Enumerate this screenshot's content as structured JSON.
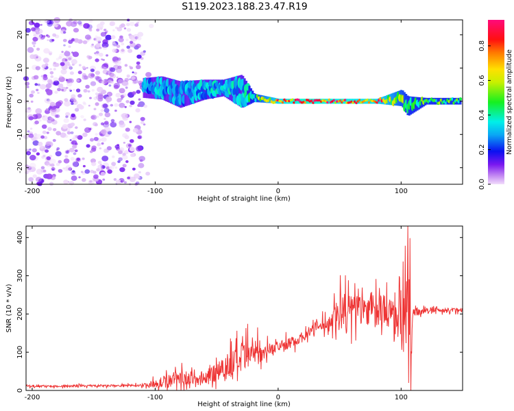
{
  "title": "S119.2023.188.23.47.R19",
  "chart_data": [
    {
      "type": "heatmap",
      "xlabel": "Height of straight line (km)",
      "ylabel": "Frequency (Hz)",
      "xlim": [
        -205,
        150
      ],
      "ylim": [
        -25,
        24.5
      ],
      "xticks": [
        -200,
        -100,
        0,
        100
      ],
      "yticks": [
        -20,
        -10,
        0,
        10,
        20
      ],
      "colorbar": {
        "label": "Normalized spectral amplitude",
        "range": [
          0,
          0.95
        ],
        "ticks": [
          0.0,
          0.2,
          0.4,
          0.6,
          0.8
        ],
        "colormap": "light-purple → blue → cyan → green → yellow → orange → red → magenta"
      },
      "noise_region": {
        "x_range": [
          -205,
          -110
        ],
        "freq_range": [
          -25,
          24.5
        ],
        "amplitude_range": [
          0.0,
          0.15
        ]
      },
      "signal_track": [
        {
          "x": -110,
          "freq": 4.0,
          "width_hz": 6,
          "amplitude": 0.25
        },
        {
          "x": -95,
          "freq": 4.0,
          "width_hz": 7,
          "amplitude": 0.3
        },
        {
          "x": -80,
          "freq": 2.0,
          "width_hz": 8,
          "amplitude": 0.28
        },
        {
          "x": -60,
          "freq": 3.5,
          "width_hz": 6,
          "amplitude": 0.3
        },
        {
          "x": -45,
          "freq": 4.0,
          "width_hz": 5,
          "amplitude": 0.32
        },
        {
          "x": -30,
          "freq": 3.0,
          "width_hz": 10,
          "amplitude": 0.3
        },
        {
          "x": -20,
          "freq": 1.0,
          "width_hz": 2.5,
          "amplitude": 0.45
        },
        {
          "x": 0,
          "freq": 0.0,
          "width_hz": 1.5,
          "amplitude": 0.75
        },
        {
          "x": 20,
          "freq": 0.0,
          "width_hz": 1.5,
          "amplitude": 0.85
        },
        {
          "x": 50,
          "freq": 0.0,
          "width_hz": 1.5,
          "amplitude": 0.8
        },
        {
          "x": 80,
          "freq": 0.0,
          "width_hz": 1.5,
          "amplitude": 0.75
        },
        {
          "x": 100,
          "freq": 1.0,
          "width_hz": 5,
          "amplitude": 0.5
        },
        {
          "x": 105,
          "freq": -1.5,
          "width_hz": 6,
          "amplitude": 0.45
        },
        {
          "x": 120,
          "freq": 0.0,
          "width_hz": 2,
          "amplitude": 0.45
        },
        {
          "x": 150,
          "freq": 0.0,
          "width_hz": 2,
          "amplitude": 0.45
        }
      ]
    },
    {
      "type": "line",
      "xlabel": "Height of straight line (km)",
      "ylabel": "SNR (10 * v/v)",
      "xlim": [
        -205,
        150
      ],
      "ylim": [
        0,
        430
      ],
      "xticks": [
        -200,
        -100,
        0,
        100
      ],
      "yticks": [
        0,
        100,
        200,
        300,
        400
      ],
      "color": "#ee3333",
      "x": [
        -205,
        -180,
        -160,
        -140,
        -120,
        -110,
        -100,
        -90,
        -80,
        -70,
        -60,
        -50,
        -40,
        -30,
        -20,
        -10,
        0,
        10,
        20,
        30,
        40,
        45,
        50,
        55,
        60,
        70,
        80,
        90,
        95,
        100,
        103,
        105,
        108,
        110,
        120,
        130,
        140,
        150
      ],
      "y": [
        12,
        11,
        12,
        12,
        13,
        14,
        18,
        25,
        35,
        30,
        25,
        55,
        65,
        80,
        95,
        105,
        115,
        125,
        140,
        165,
        175,
        190,
        200,
        205,
        210,
        215,
        210,
        205,
        215,
        205,
        150,
        230,
        150,
        205,
        208,
        210,
        210,
        212
      ],
      "noise_amplitude": [
        4,
        4,
        4,
        4,
        4,
        5,
        15,
        25,
        30,
        20,
        20,
        50,
        55,
        55,
        55,
        25,
        20,
        20,
        20,
        20,
        25,
        40,
        90,
        90,
        60,
        60,
        60,
        60,
        70,
        90,
        140,
        150,
        140,
        20,
        8,
        8,
        8,
        8
      ]
    }
  ]
}
